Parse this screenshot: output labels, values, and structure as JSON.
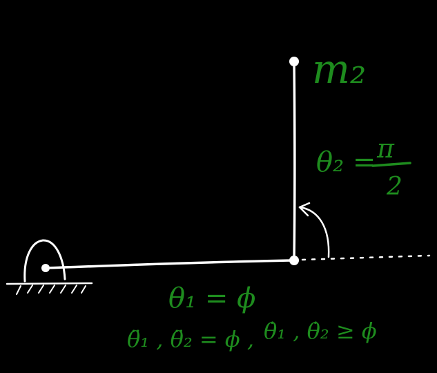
{
  "labels": {
    "mass": "m₂",
    "theta2_lhs": "θ₂ =",
    "theta2_num": "π",
    "theta2_den": "2",
    "theta1": "θ₁ = ϕ",
    "accel_cond": "θ̈₁ , θ̈₂ = ϕ ,",
    "vel_cond": "θ̇₁ , θ̇₂ ≥ ϕ"
  },
  "colors": {
    "background": "#000000",
    "lines": "#ffffff",
    "labels": "#1e8c1e"
  }
}
